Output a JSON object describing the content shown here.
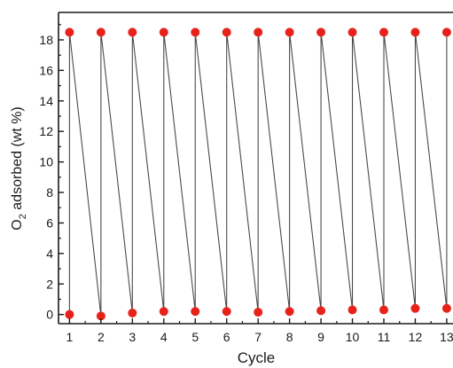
{
  "chart_data": {
    "type": "line",
    "title": "",
    "xlabel": "Cycle",
    "ylabel": {
      "prefix": "O",
      "subscript": "2",
      "suffix": " adsorbed (wt %)"
    },
    "xlim": [
      0.65,
      13.2
    ],
    "ylim": [
      -0.6,
      19.8
    ],
    "xticks": [
      1,
      2,
      3,
      4,
      5,
      6,
      7,
      8,
      9,
      10,
      11,
      12,
      13
    ],
    "yticks": [
      0,
      2,
      4,
      6,
      8,
      10,
      12,
      14,
      16,
      18
    ],
    "grid": false,
    "series": [
      {
        "type": "line",
        "color": "#4a4a4a",
        "marker": "none",
        "points": [
          [
            1,
            18.5
          ],
          [
            1,
            0.0
          ],
          [
            1,
            18.5
          ],
          [
            2,
            -0.1
          ],
          [
            2,
            18.5
          ],
          [
            3,
            0.1
          ],
          [
            3,
            18.5
          ],
          [
            4,
            0.2
          ],
          [
            4,
            18.5
          ],
          [
            5,
            0.2
          ],
          [
            5,
            18.5
          ],
          [
            6,
            0.2
          ],
          [
            6,
            18.5
          ],
          [
            7,
            0.15
          ],
          [
            7,
            18.5
          ],
          [
            8,
            0.2
          ],
          [
            8,
            18.5
          ],
          [
            9,
            0.25
          ],
          [
            9,
            18.5
          ],
          [
            10,
            0.3
          ],
          [
            10,
            18.5
          ],
          [
            11,
            0.3
          ],
          [
            11,
            18.5
          ],
          [
            12,
            0.4
          ],
          [
            12,
            18.5
          ],
          [
            13,
            0.4
          ],
          [
            13,
            18.5
          ]
        ]
      },
      {
        "type": "scatter",
        "color": "#e8221b",
        "marker": "circle",
        "points": [
          [
            1,
            18.5
          ],
          [
            1,
            0.0
          ],
          [
            2,
            18.5
          ],
          [
            2,
            -0.1
          ],
          [
            3,
            18.5
          ],
          [
            3,
            0.1
          ],
          [
            4,
            18.5
          ],
          [
            4,
            0.2
          ],
          [
            5,
            18.5
          ],
          [
            5,
            0.2
          ],
          [
            6,
            18.5
          ],
          [
            6,
            0.2
          ],
          [
            7,
            18.5
          ],
          [
            7,
            0.15
          ],
          [
            8,
            18.5
          ],
          [
            8,
            0.2
          ],
          [
            9,
            18.5
          ],
          [
            9,
            0.25
          ],
          [
            10,
            18.5
          ],
          [
            10,
            0.3
          ],
          [
            11,
            18.5
          ],
          [
            11,
            0.3
          ],
          [
            12,
            18.5
          ],
          [
            12,
            0.4
          ],
          [
            13,
            18.5
          ],
          [
            13,
            0.4
          ]
        ]
      }
    ]
  }
}
